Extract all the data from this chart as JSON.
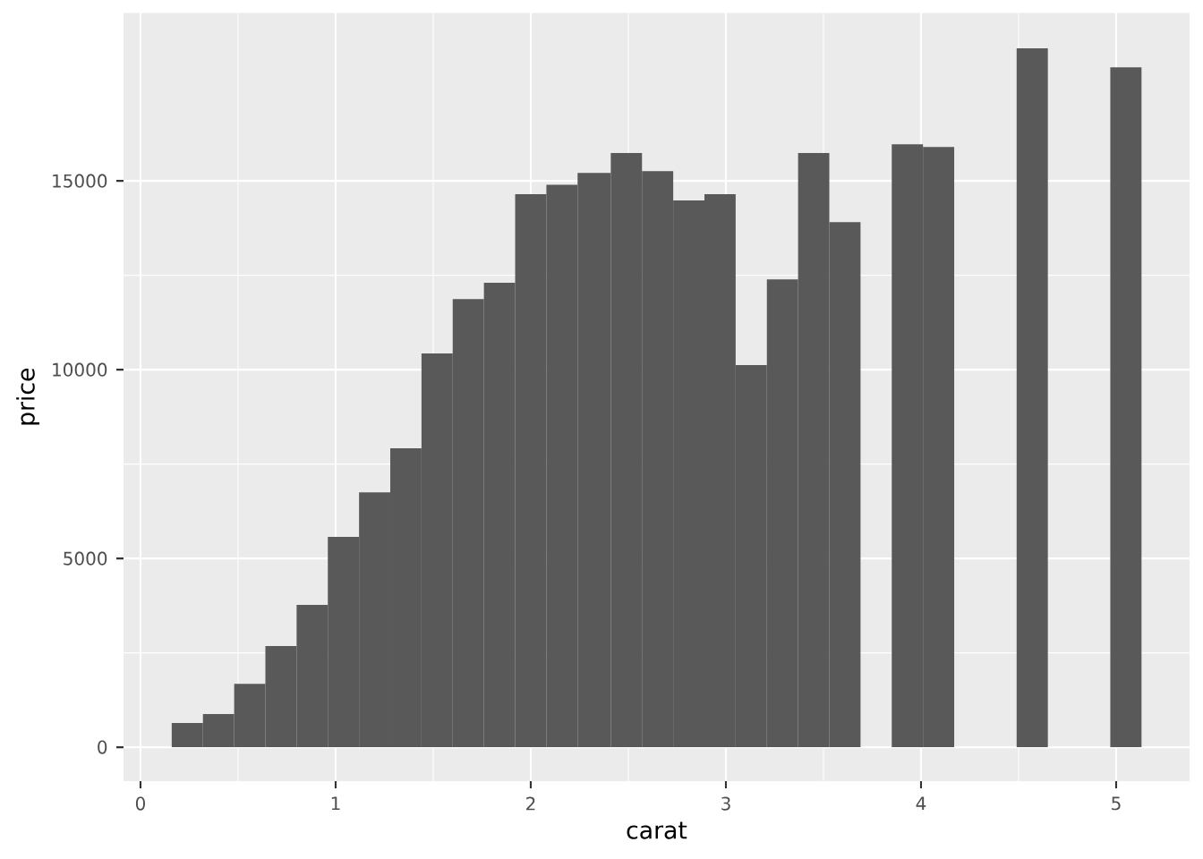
{
  "chart_data": {
    "type": "histogram",
    "xlabel": "carat",
    "ylabel": "price",
    "bins": [
      0.16,
      0.32,
      0.48,
      0.64,
      0.8,
      0.96,
      1.12,
      1.28,
      1.44,
      1.6,
      1.76,
      1.92,
      2.08,
      2.24,
      2.41,
      2.57,
      2.73,
      2.89,
      3.05,
      3.21,
      3.37,
      3.53,
      3.69,
      3.85,
      4.01,
      4.17,
      4.49,
      4.65,
      4.97,
      5.13
    ],
    "values": [
      640,
      880,
      1680,
      2680,
      3770,
      5570,
      6750,
      7920,
      10430,
      11870,
      12300,
      14650,
      14900,
      15210,
      15740,
      15260,
      14480,
      14650,
      10120,
      12390,
      15740,
      13910,
      null,
      15970,
      15900,
      null,
      18510,
      null,
      18010
    ],
    "color": "#595959",
    "xlim": [
      -0.087,
      5.376
    ],
    "ylim": [
      -900,
      19450
    ],
    "xticks": [
      0,
      1,
      2,
      3,
      4,
      5
    ],
    "yticks": [
      0,
      5000,
      10000,
      15000
    ],
    "grid": true
  }
}
